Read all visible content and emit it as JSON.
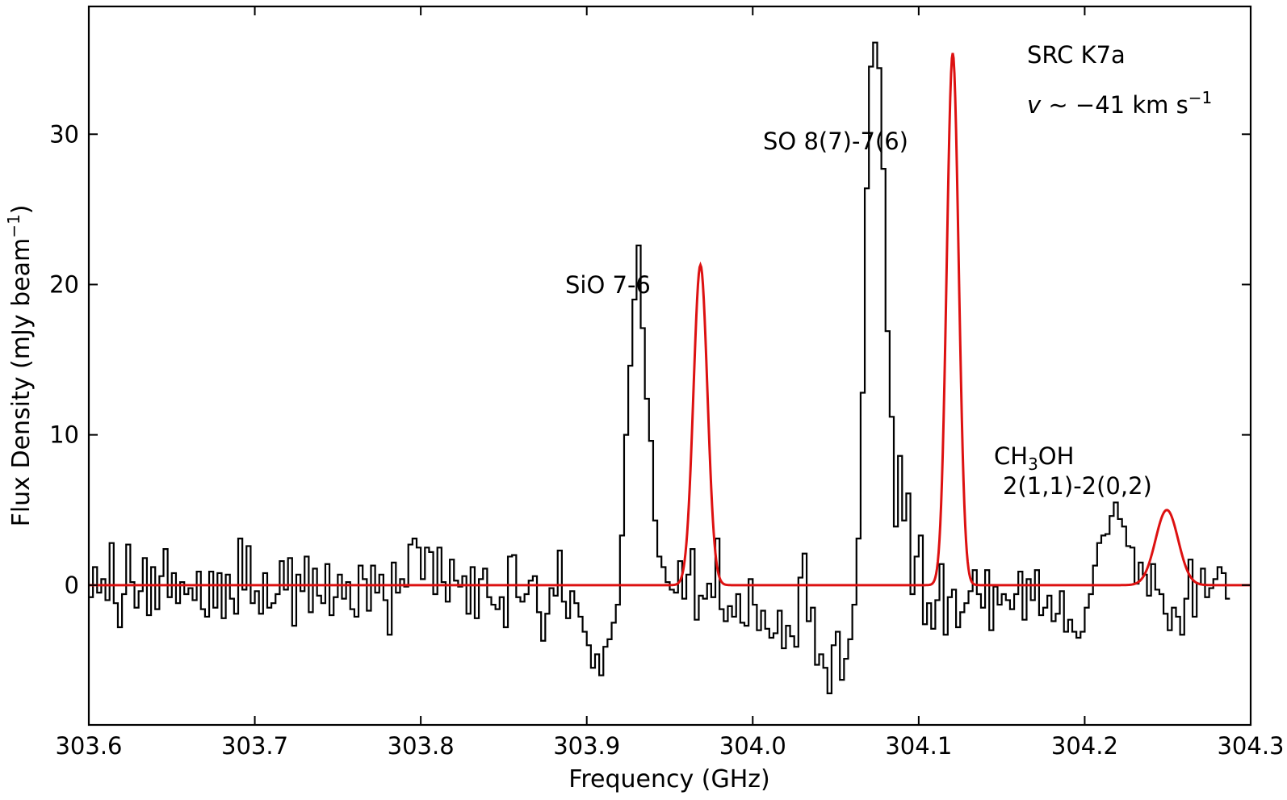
{
  "chart_data": {
    "type": "line",
    "xlabel": "Frequency (GHz)",
    "ylabel_text": "Flux Density (mJy beam",
    "ylabel_sup": "−1",
    "ylabel_close": ")",
    "xlim": [
      303.6,
      304.3
    ],
    "ylim": [
      -9.3,
      38.5
    ],
    "xticks": [
      303.6,
      303.7,
      303.8,
      303.9,
      304.0,
      304.1,
      304.2,
      304.3
    ],
    "xtick_labels": [
      "303.6",
      "303.7",
      "303.8",
      "303.9",
      "304.0",
      "304.1",
      "304.2",
      "304.3"
    ],
    "yticks": [
      0,
      10,
      20,
      30
    ],
    "ytick_labels": [
      "0",
      "10",
      "20",
      "30"
    ],
    "grid": false,
    "ticks_direction": "in",
    "series": [
      {
        "style": "step",
        "color": "#000000",
        "channel_width_ghz": 0.0025,
        "x_start": 303.6,
        "y": [
          -0.8,
          1.2,
          -0.5,
          0.4,
          -1.0,
          2.8,
          -1.2,
          -2.8,
          -0.6,
          2.7,
          0.2,
          -1.5,
          -0.4,
          1.8,
          -2.0,
          1.2,
          -1.6,
          0.6,
          2.4,
          -0.8,
          0.8,
          -1.2,
          0.2,
          -0.6,
          -0.2,
          -1.0,
          0.9,
          -1.6,
          -2.1,
          0.9,
          -1.5,
          0.8,
          -2.2,
          0.7,
          -0.9,
          -1.9,
          3.1,
          -0.3,
          2.6,
          -1.2,
          -0.4,
          -1.9,
          0.8,
          -1.5,
          -1.2,
          -0.6,
          1.6,
          -0.3,
          1.8,
          -2.7,
          0.7,
          -0.4,
          1.9,
          -1.8,
          1.1,
          -0.7,
          -1.2,
          1.4,
          -2.0,
          -0.8,
          0.7,
          -0.9,
          0.2,
          -1.6,
          -2.1,
          1.3,
          0.4,
          -1.7,
          1.3,
          -0.5,
          0.7,
          -1.0,
          -3.3,
          1.5,
          -0.5,
          0.4,
          -0.1,
          2.7,
          3.1,
          2.5,
          0.4,
          2.5,
          2.2,
          -0.6,
          2.5,
          0.2,
          -1.1,
          1.7,
          0.3,
          -0.1,
          0.6,
          -1.9,
          1.2,
          -2.2,
          0.4,
          1.1,
          -0.8,
          -1.3,
          -1.6,
          -0.8,
          -2.8,
          1.9,
          2.0,
          -0.8,
          -1.1,
          -0.6,
          0.3,
          0.6,
          -1.8,
          -3.7,
          -1.9,
          -0.2,
          -0.7,
          2.3,
          -1.1,
          -2.2,
          -0.4,
          -1.2,
          -2.1,
          -3.1,
          -4.0,
          -5.5,
          -4.6,
          -6.0,
          -4.1,
          -3.6,
          -2.5,
          -1.3,
          3.3,
          10.0,
          14.6,
          19.0,
          22.6,
          17.1,
          12.4,
          9.6,
          4.3,
          1.9,
          1.2,
          0.2,
          -0.3,
          -0.5,
          1.6,
          -0.9,
          0.7,
          2.4,
          -2.3,
          -0.7,
          -0.9,
          0.1,
          -0.8,
          3.1,
          -1.6,
          -2.4,
          -1.4,
          -2.1,
          -0.6,
          -2.5,
          -2.7,
          0.4,
          -1.3,
          -3.0,
          -1.7,
          -2.9,
          -3.5,
          -3.2,
          -1.7,
          -4.2,
          -2.7,
          -3.4,
          -4.1,
          0.5,
          2.1,
          -2.4,
          -1.5,
          -5.3,
          -4.6,
          -5.5,
          -7.2,
          -4.0,
          -3.1,
          -6.3,
          -4.9,
          -3.6,
          -1.3,
          3.1,
          12.8,
          26.4,
          34.5,
          36.1,
          34.4,
          27.7,
          16.9,
          11.2,
          3.9,
          8.6,
          4.3,
          6.1,
          -0.6,
          1.9,
          3.3,
          -2.6,
          -1.2,
          -2.9,
          -1.0,
          1.4,
          -3.3,
          -0.8,
          -0.3,
          -2.8,
          -1.8,
          -1.2,
          -0.4,
          1.0,
          -0.6,
          -1.5,
          1.0,
          -3.0,
          -0.1,
          -1.3,
          -0.6,
          -1.0,
          -1.6,
          -0.6,
          0.9,
          -2.3,
          0.4,
          -1.0,
          1.0,
          -2.0,
          -1.5,
          -0.7,
          -2.4,
          -1.9,
          -0.4,
          -3.1,
          -2.3,
          -3.1,
          -3.5,
          -3.1,
          -1.5,
          -0.6,
          1.3,
          2.8,
          3.3,
          3.4,
          4.6,
          5.5,
          4.4,
          3.9,
          2.6,
          2.5,
          0.1,
          1.5,
          0.7,
          -0.7,
          1.4,
          -0.3,
          -0.6,
          -1.9,
          -3.0,
          -1.5,
          -2.1,
          -3.3,
          -0.9,
          1.7,
          -2.1,
          0.1,
          1.1,
          -0.8,
          -0.2,
          0.4,
          1.2,
          0.8,
          -0.9
        ]
      },
      {
        "style": "line",
        "color": "#dd1111",
        "components": [
          {
            "center_ghz": 303.9685,
            "amplitude": 21.3,
            "sigma_ghz": 0.0042
          },
          {
            "center_ghz": 304.1205,
            "amplitude": 35.4,
            "sigma_ghz": 0.0036
          },
          {
            "center_ghz": 304.2495,
            "amplitude": 5.0,
            "sigma_ghz": 0.0068
          }
        ]
      }
    ],
    "annotations": [
      {
        "id": "sio",
        "text": "SiO 7-6"
      },
      {
        "id": "so",
        "text": "SO 8(7)-7(6)"
      },
      {
        "id": "ch3oh_a",
        "text": "CH",
        "sub": "3",
        "text2": "OH"
      },
      {
        "id": "ch3oh_b",
        "text": "2(1,1)-2(0,2)"
      },
      {
        "id": "src",
        "text": "SRC K7a"
      },
      {
        "id": "vel_v",
        "text": "v",
        "vel_rest": " ∼ −41 km s",
        "vel_sup": "−1"
      }
    ]
  }
}
